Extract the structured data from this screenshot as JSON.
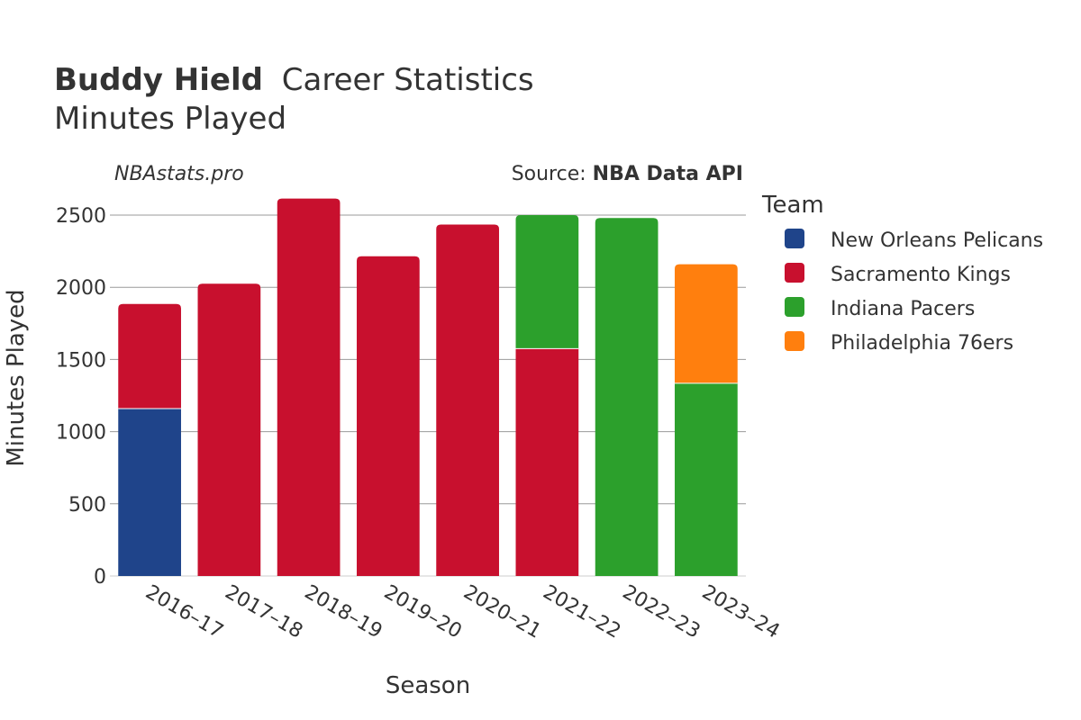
{
  "header": {
    "title_player": "Buddy Hield",
    "title_rest": "Career Statistics",
    "subtitle": "Minutes Played",
    "brand": "NBAstats.pro",
    "source_prefix": "Source: ",
    "source_name": "NBA Data API"
  },
  "chart_data": {
    "type": "bar",
    "stacked": true,
    "xlabel": "Season",
    "ylabel": "Minutes Played",
    "ylim": [
      0,
      2650
    ],
    "yticks": [
      0,
      500,
      1000,
      1500,
      2000,
      2500
    ],
    "grid": true,
    "legend_title": "Team",
    "legend_position": "right",
    "categories": [
      "2016–17",
      "2017–18",
      "2018–19",
      "2019–20",
      "2020–21",
      "2021–22",
      "2022–23",
      "2023–24"
    ],
    "series": [
      {
        "name": "New Orleans Pelicans",
        "color": "#1f448a",
        "values": [
          1160,
          0,
          0,
          0,
          0,
          0,
          0,
          0
        ]
      },
      {
        "name": "Sacramento Kings",
        "color": "#c8102e",
        "values": [
          725,
          2025,
          2615,
          2215,
          2435,
          1575,
          0,
          0
        ]
      },
      {
        "name": "Indiana Pacers",
        "color": "#2ca02c",
        "values": [
          0,
          0,
          0,
          0,
          0,
          925,
          2480,
          1335
        ]
      },
      {
        "name": "Philadelphia 76ers",
        "color": "#ff7f0e",
        "values": [
          0,
          0,
          0,
          0,
          0,
          0,
          0,
          825
        ]
      }
    ]
  }
}
